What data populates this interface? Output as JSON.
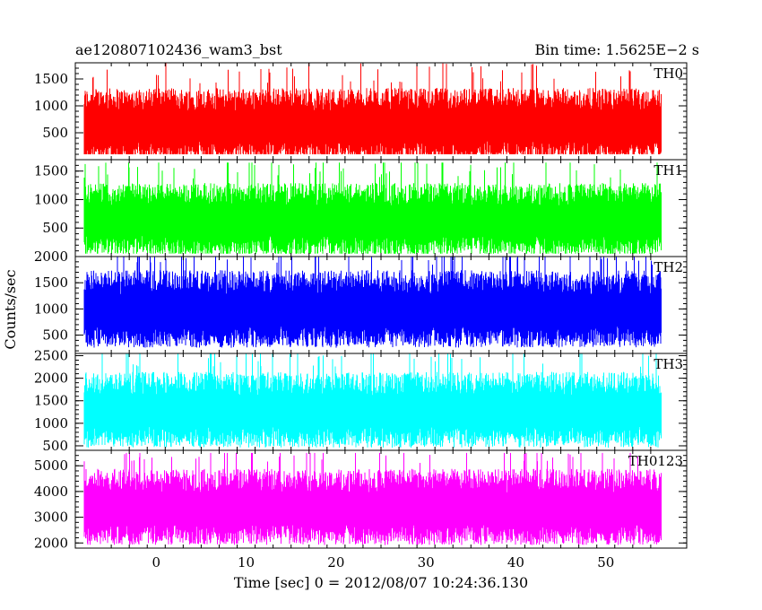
{
  "header": {
    "left_title": "ae120807102436_wam3_bst",
    "right_title": "Bin time: 1.5625E−2 s"
  },
  "chart_data": {
    "type": "line",
    "xlabel": "Time [sec] 0 = 2012/08/07 10:24:36.130",
    "ylabel": "Counts/sec",
    "xlim": [
      -9,
      59
    ],
    "x_data_range": [
      -8.0,
      56.2
    ],
    "x_ticks": [
      0,
      10,
      20,
      30,
      40,
      50
    ],
    "x_tick_labels": [
      "0",
      "10",
      "20",
      "30",
      "40",
      "50"
    ],
    "bin_time_s": 0.015625,
    "grid": false,
    "panels": [
      {
        "label": "TH0",
        "color": "#ff0000",
        "ylim": [
          0,
          1800
        ],
        "y_ticks": [
          500,
          1000,
          1500
        ],
        "y_tick_labels": [
          "500",
          "1000",
          "1500"
        ],
        "approx_mean": 650,
        "approx_min": 100,
        "approx_max": 1800
      },
      {
        "label": "TH1",
        "color": "#00ff00",
        "ylim": [
          0,
          1700
        ],
        "y_ticks": [
          500,
          1000,
          1500
        ],
        "y_tick_labels": [
          "500",
          "1000",
          "1500"
        ],
        "approx_mean": 650,
        "approx_min": 50,
        "approx_max": 1650
      },
      {
        "label": "TH2",
        "color": "#0000ff",
        "ylim": [
          150,
          2000
        ],
        "y_ticks": [
          500,
          1000,
          1500,
          2000
        ],
        "y_tick_labels": [
          "500",
          "1000",
          "1500",
          "2000"
        ],
        "approx_mean": 1000,
        "approx_min": 150,
        "approx_max": 2000
      },
      {
        "label": "TH3",
        "color": "#00ffff",
        "ylim": [
          400,
          2550
        ],
        "y_ticks": [
          500,
          1000,
          1500,
          2000,
          2500
        ],
        "y_tick_labels": [
          "500",
          "1000",
          "1500",
          "2000",
          "2500"
        ],
        "approx_mean": 1300,
        "approx_min": 450,
        "approx_max": 2550
      },
      {
        "label": "TH0123",
        "color": "#ff00ff",
        "ylim": [
          1800,
          5600
        ],
        "y_ticks": [
          2000,
          3000,
          4000,
          5000
        ],
        "y_tick_labels": [
          "2000",
          "3000",
          "4000",
          "5000"
        ],
        "approx_mean": 3400,
        "approx_min": 1800,
        "approx_max": 5500
      }
    ]
  }
}
